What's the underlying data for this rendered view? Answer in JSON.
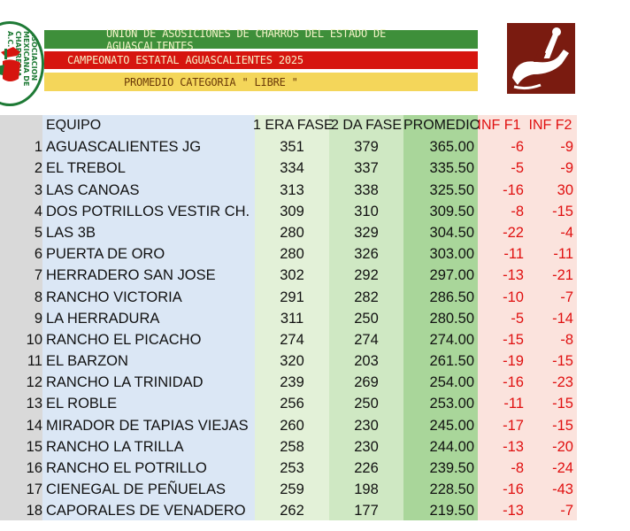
{
  "header": {
    "logo_left_text": "ASOCIACION MEXICANA DE CHARRERIA A.C.",
    "banner_line1": "UNION DE ASOSICIONES DE CHARROS DEL ESTADO DE AGUASCALIENTES",
    "banner_line2": "CAMPEONATO ESTATAL AGUASCALIENTES 2025",
    "banner_line3": "PROMEDIO CATEGORIA \" LIBRE \"",
    "colors": {
      "green": "#3e8f3a",
      "red": "#d6150f",
      "yellow": "#f4d65a",
      "logo_right_bg": "#7a1b10"
    }
  },
  "table": {
    "columns": [
      "EQUIPO",
      "1 ERA FASE",
      "2 DA FASE",
      "PROMEDIO",
      "INF F1",
      "INF F2"
    ],
    "rows": [
      {
        "n": "1",
        "team": "AGUASCALIENTES JG",
        "f1": "351",
        "f2": "379",
        "prom": "365.00",
        "i1": "-6",
        "i2": "-9"
      },
      {
        "n": "2",
        "team": "EL TREBOL",
        "f1": "334",
        "f2": "337",
        "prom": "335.50",
        "i1": "-5",
        "i2": "-9"
      },
      {
        "n": "3",
        "team": "LAS CANOAS",
        "f1": "313",
        "f2": "338",
        "prom": "325.50",
        "i1": "-16",
        "i2": "30"
      },
      {
        "n": "4",
        "team": "DOS POTRILLOS  VESTIR CH.",
        "f1": "309",
        "f2": "310",
        "prom": "309.50",
        "i1": "-8",
        "i2": "-15"
      },
      {
        "n": "5",
        "team": "LAS 3B",
        "f1": "280",
        "f2": "329",
        "prom": "304.50",
        "i1": "-22",
        "i2": "-4"
      },
      {
        "n": "6",
        "team": "PUERTA DE ORO",
        "f1": "280",
        "f2": "326",
        "prom": "303.00",
        "i1": "-11",
        "i2": "-11"
      },
      {
        "n": "7",
        "team": "HERRADERO SAN JOSE",
        "f1": "302",
        "f2": "292",
        "prom": "297.00",
        "i1": "-13",
        "i2": "-21"
      },
      {
        "n": "8",
        "team": "RANCHO VICTORIA",
        "f1": "291",
        "f2": "282",
        "prom": "286.50",
        "i1": "-10",
        "i2": "-7"
      },
      {
        "n": "9",
        "team": "LA HERRADURA",
        "f1": "311",
        "f2": "250",
        "prom": "280.50",
        "i1": "-5",
        "i2": "-14"
      },
      {
        "n": "10",
        "team": "RANCHO EL PICACHO",
        "f1": "274",
        "f2": "274",
        "prom": "274.00",
        "i1": "-15",
        "i2": "-8"
      },
      {
        "n": "11",
        "team": "EL BARZON",
        "f1": "320",
        "f2": "203",
        "prom": "261.50",
        "i1": "-19",
        "i2": "-15"
      },
      {
        "n": "12",
        "team": "RANCHO LA TRINIDAD",
        "f1": "239",
        "f2": "269",
        "prom": "254.00",
        "i1": "-16",
        "i2": "-23"
      },
      {
        "n": "13",
        "team": "EL ROBLE",
        "f1": "256",
        "f2": "250",
        "prom": "253.00",
        "i1": "-11",
        "i2": "-15"
      },
      {
        "n": "14",
        "team": "MIRADOR DE TAPIAS VIEJAS",
        "f1": "260",
        "f2": "230",
        "prom": "245.00",
        "i1": "-17",
        "i2": "-15"
      },
      {
        "n": "15",
        "team": "RANCHO LA TRILLA",
        "f1": "258",
        "f2": "230",
        "prom": "244.00",
        "i1": "-13",
        "i2": "-20"
      },
      {
        "n": "16",
        "team": "RANCHO EL POTRILLO",
        "f1": "253",
        "f2": "226",
        "prom": "239.50",
        "i1": "-8",
        "i2": "-24"
      },
      {
        "n": "17",
        "team": "CIENEGAL DE PEÑUELAS",
        "f1": "259",
        "f2": "198",
        "prom": "228.50",
        "i1": "-16",
        "i2": "-43"
      },
      {
        "n": "18",
        "team": "CAPORALES DE VENADERO",
        "f1": "262",
        "f2": "177",
        "prom": "219.50",
        "i1": "-13",
        "i2": "-7"
      }
    ]
  }
}
